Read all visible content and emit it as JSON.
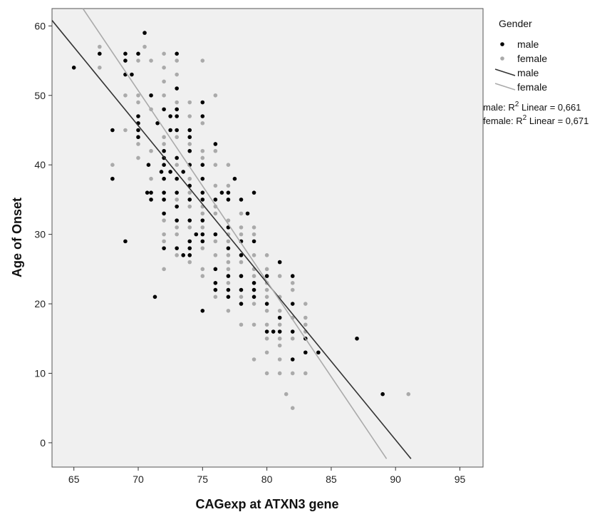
{
  "chart_data": {
    "type": "scatter",
    "xlabel": "CAGexp at ATXN3 gene",
    "ylabel": "Age of Onset",
    "xlim": [
      63.3,
      96.8
    ],
    "ylim": [
      -3.5,
      62.5
    ],
    "xticks": [
      65,
      70,
      75,
      80,
      85,
      90,
      95
    ],
    "yticks": [
      0,
      10,
      20,
      30,
      40,
      50,
      60
    ],
    "legend_title": "Gender",
    "legend_position": "right",
    "series": [
      {
        "name": "male",
        "color": "#000000",
        "marker": "point",
        "points": [
          [
            65,
            54
          ],
          [
            67,
            56
          ],
          [
            68,
            45
          ],
          [
            68,
            38
          ],
          [
            69,
            29
          ],
          [
            69,
            56
          ],
          [
            69,
            55
          ],
          [
            69,
            53
          ],
          [
            69.5,
            53
          ],
          [
            70,
            56
          ],
          [
            70,
            47
          ],
          [
            70,
            46
          ],
          [
            70,
            45
          ],
          [
            70,
            44
          ],
          [
            70.5,
            59
          ],
          [
            70.7,
            36
          ],
          [
            70.8,
            40
          ],
          [
            71,
            50
          ],
          [
            71,
            36
          ],
          [
            71,
            35
          ],
          [
            71.3,
            21
          ],
          [
            71.5,
            46
          ],
          [
            71.8,
            39
          ],
          [
            72,
            48
          ],
          [
            72,
            42
          ],
          [
            72,
            41
          ],
          [
            72,
            40
          ],
          [
            72,
            38
          ],
          [
            72,
            36
          ],
          [
            72,
            35
          ],
          [
            72,
            33
          ],
          [
            72,
            28
          ],
          [
            72.5,
            47
          ],
          [
            72.5,
            45
          ],
          [
            72.5,
            39
          ],
          [
            73,
            56
          ],
          [
            73,
            51
          ],
          [
            73,
            48
          ],
          [
            73,
            47
          ],
          [
            73,
            45
          ],
          [
            73,
            41
          ],
          [
            73,
            38
          ],
          [
            73,
            36
          ],
          [
            73,
            34
          ],
          [
            73,
            32
          ],
          [
            73,
            28
          ],
          [
            73.5,
            39
          ],
          [
            73.5,
            27
          ],
          [
            74,
            45
          ],
          [
            74,
            44
          ],
          [
            74,
            42
          ],
          [
            74,
            40
          ],
          [
            74,
            37
          ],
          [
            74,
            35
          ],
          [
            74,
            32
          ],
          [
            74,
            29
          ],
          [
            74,
            28
          ],
          [
            74,
            27
          ],
          [
            74.5,
            30
          ],
          [
            75,
            49
          ],
          [
            75,
            47
          ],
          [
            75,
            40
          ],
          [
            75,
            38
          ],
          [
            75,
            36
          ],
          [
            75,
            35
          ],
          [
            75,
            32
          ],
          [
            75,
            30
          ],
          [
            75,
            29
          ],
          [
            75,
            19
          ],
          [
            76,
            43
          ],
          [
            76,
            35
          ],
          [
            76,
            30
          ],
          [
            76,
            25
          ],
          [
            76,
            23
          ],
          [
            76,
            22
          ],
          [
            76.5,
            36
          ],
          [
            77,
            36
          ],
          [
            77,
            35
          ],
          [
            77,
            31
          ],
          [
            77,
            28
          ],
          [
            77,
            24
          ],
          [
            77,
            22
          ],
          [
            77,
            21
          ],
          [
            77.5,
            38
          ],
          [
            78,
            35
          ],
          [
            78,
            29
          ],
          [
            78,
            27
          ],
          [
            78,
            24
          ],
          [
            78,
            22
          ],
          [
            78,
            20
          ],
          [
            78.5,
            33
          ],
          [
            79,
            36
          ],
          [
            79,
            29
          ],
          [
            79,
            23
          ],
          [
            79,
            22
          ],
          [
            79,
            21
          ],
          [
            80,
            24
          ],
          [
            80,
            20
          ],
          [
            80,
            16
          ],
          [
            80.5,
            16
          ],
          [
            81,
            26
          ],
          [
            81,
            18
          ],
          [
            81,
            16
          ],
          [
            82,
            24
          ],
          [
            82,
            20
          ],
          [
            82,
            16
          ],
          [
            82,
            12
          ],
          [
            83,
            15
          ],
          [
            83,
            13
          ],
          [
            84,
            13
          ],
          [
            87,
            15
          ],
          [
            89,
            7
          ]
        ]
      },
      {
        "name": "female",
        "color": "#aaaaaa",
        "marker": "point",
        "points": [
          [
            67,
            57
          ],
          [
            67,
            54
          ],
          [
            68,
            40
          ],
          [
            68,
            38
          ],
          [
            69,
            50
          ],
          [
            69,
            45
          ],
          [
            70,
            55
          ],
          [
            70,
            50
          ],
          [
            70,
            49
          ],
          [
            70,
            43
          ],
          [
            70,
            41
          ],
          [
            70.5,
            57
          ],
          [
            71,
            55
          ],
          [
            71,
            48
          ],
          [
            71,
            42
          ],
          [
            71,
            38
          ],
          [
            72,
            56
          ],
          [
            72,
            54
          ],
          [
            72,
            52
          ],
          [
            72,
            50
          ],
          [
            72,
            44
          ],
          [
            72,
            43
          ],
          [
            72,
            32
          ],
          [
            72,
            30
          ],
          [
            72,
            29
          ],
          [
            72,
            25
          ],
          [
            73,
            55
          ],
          [
            73,
            53
          ],
          [
            73,
            49
          ],
          [
            73,
            44
          ],
          [
            73,
            40
          ],
          [
            73,
            35
          ],
          [
            73,
            31
          ],
          [
            73,
            30
          ],
          [
            73,
            27
          ],
          [
            74,
            49
          ],
          [
            74,
            47
          ],
          [
            74,
            43
          ],
          [
            74,
            38
          ],
          [
            74,
            36
          ],
          [
            74,
            34
          ],
          [
            74,
            31
          ],
          [
            74,
            26
          ],
          [
            75,
            55
          ],
          [
            75,
            46
          ],
          [
            75,
            42
          ],
          [
            75,
            41
          ],
          [
            75,
            34
          ],
          [
            75,
            33
          ],
          [
            75,
            31
          ],
          [
            75,
            28
          ],
          [
            75,
            25
          ],
          [
            75,
            24
          ],
          [
            76,
            50
          ],
          [
            76,
            42
          ],
          [
            76,
            40
          ],
          [
            76,
            37
          ],
          [
            76,
            34
          ],
          [
            76,
            33
          ],
          [
            76,
            29
          ],
          [
            76,
            27
          ],
          [
            76,
            21
          ],
          [
            77,
            40
          ],
          [
            77,
            37
          ],
          [
            77,
            32
          ],
          [
            77,
            30
          ],
          [
            77,
            29
          ],
          [
            77,
            27
          ],
          [
            77,
            26
          ],
          [
            77,
            25
          ],
          [
            77,
            23
          ],
          [
            77,
            19
          ],
          [
            78,
            33
          ],
          [
            78,
            31
          ],
          [
            78,
            30
          ],
          [
            78,
            26
          ],
          [
            78,
            24
          ],
          [
            78,
            21
          ],
          [
            78,
            20
          ],
          [
            78,
            17
          ],
          [
            79,
            31
          ],
          [
            79,
            30
          ],
          [
            79,
            27
          ],
          [
            79,
            25
          ],
          [
            79,
            24
          ],
          [
            79,
            20
          ],
          [
            79,
            17
          ],
          [
            79,
            12
          ],
          [
            80,
            27
          ],
          [
            80,
            25
          ],
          [
            80,
            23
          ],
          [
            80,
            22
          ],
          [
            80,
            21
          ],
          [
            80,
            19
          ],
          [
            80,
            17
          ],
          [
            80,
            15
          ],
          [
            80,
            13
          ],
          [
            80,
            10
          ],
          [
            81,
            24
          ],
          [
            81,
            21
          ],
          [
            81,
            19
          ],
          [
            81,
            17
          ],
          [
            81,
            15
          ],
          [
            81,
            14
          ],
          [
            81,
            12
          ],
          [
            81,
            10
          ],
          [
            81.5,
            7
          ],
          [
            82,
            23
          ],
          [
            82,
            22
          ],
          [
            82,
            18
          ],
          [
            82,
            15
          ],
          [
            82,
            10
          ],
          [
            82,
            5
          ],
          [
            83,
            20
          ],
          [
            83,
            18
          ],
          [
            83,
            17
          ],
          [
            83,
            16
          ],
          [
            83,
            10
          ],
          [
            91,
            7
          ]
        ]
      }
    ],
    "fit_lines": [
      {
        "name": "male",
        "color": "#333333",
        "x": [
          63.3,
          91.2
        ],
        "y": [
          60.8,
          -2.3
        ],
        "r2_label": "male: R² Linear = 0,661"
      },
      {
        "name": "female",
        "color": "#aaaaaa",
        "x": [
          65.7,
          89.3
        ],
        "y": [
          62.5,
          -2.3
        ],
        "r2_label": "female: R² Linear = 0,671"
      }
    ]
  }
}
